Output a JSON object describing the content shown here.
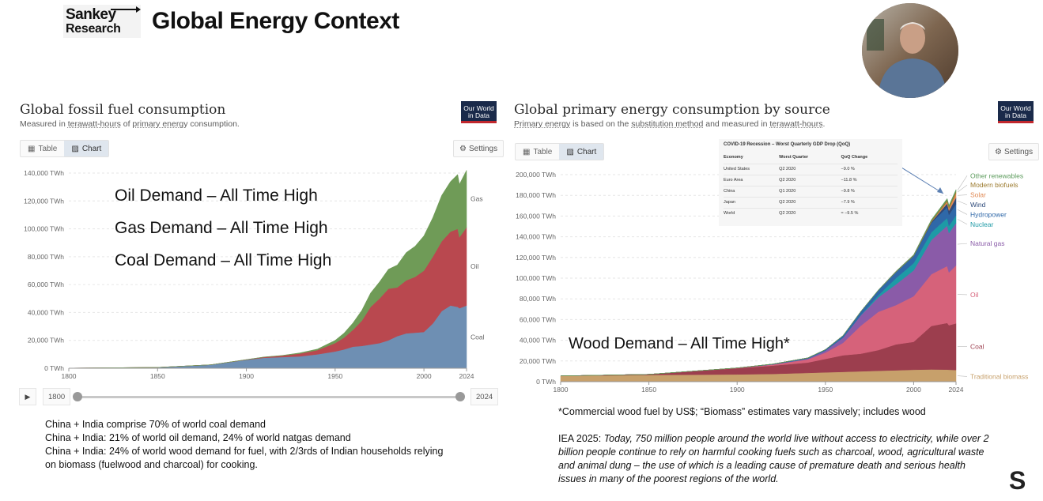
{
  "header": {
    "logo_line1": "Sankey",
    "logo_line2": "Research",
    "title": "Global Energy Context"
  },
  "owid_logo": "Our World in Data",
  "left_panel": {
    "title": "Global fossil fuel consumption",
    "subtitle_pre": "Measured in ",
    "subtitle_link1": "terawatt-hours",
    "subtitle_mid": " of ",
    "subtitle_link2": "primary energy",
    "subtitle_post": " consumption.",
    "tab_table": "Table",
    "tab_chart": "Chart",
    "settings": "Settings",
    "timeline": {
      "start": "1800",
      "end": "2024",
      "play": "▶"
    },
    "overlays": [
      "Oil Demand – All Time High",
      "Gas Demand – All Time High",
      "Coal Demand – All Time High"
    ]
  },
  "right_panel": {
    "title": "Global primary energy consumption by source",
    "subtitle_link1": "Primary energy",
    "subtitle_mid": " is based on the ",
    "subtitle_link2": "substitution method",
    "subtitle_mid2": " and measured in ",
    "subtitle_link3": "terawatt-hours",
    "subtitle_post": ".",
    "tab_table": "Table",
    "tab_chart": "Chart",
    "settings": "Settings",
    "overlay": "Wood Demand – All Time High*",
    "covid_table": {
      "title": "COVID-19 Recession – Worst Quarterly GDP Drop (QoQ)",
      "headers": [
        "Economy",
        "Worst Quarter",
        "QoQ Change"
      ],
      "rows": [
        [
          "United States",
          "Q2 2020",
          "−9.0 %"
        ],
        [
          "Euro Area",
          "Q2 2020",
          "−11.8 %"
        ],
        [
          "China",
          "Q1 2020",
          "−9.8 %"
        ],
        [
          "Japan",
          "Q2 2020",
          "−7.9 %"
        ],
        [
          "World",
          "Q2 2020",
          "≈ −9.5 %"
        ]
      ]
    }
  },
  "notes": {
    "left": [
      "China + India comprise 70% of world coal demand",
      "China + India: 21% of world oil demand, 24% of world natgas demand",
      "China + India: 24% of world wood demand for fuel, with 2/3rds of Indian households relying",
      "on biomass (fuelwood and charcoal) for cooking."
    ],
    "footnote": "*Commercial wood fuel by US$; “Biomass” estimates vary massively; includes wood",
    "iea_prefix": "IEA 2025: ",
    "iea_quote": "Today, 750 million people around the world live without access to electricity, while over 2 billion people continue to rely on harmful cooking fuels such as charcoal, wood, agricultural waste and animal dung – the use of which is a leading cause of premature death and serious health issues in many of the poorest regions of the world."
  },
  "brand_mark": "S",
  "chart_data": [
    {
      "type": "area",
      "stacked": true,
      "title": "Global fossil fuel consumption",
      "unit": "TWh",
      "x": [
        1800,
        1850,
        1880,
        1900,
        1910,
        1920,
        1930,
        1940,
        1950,
        1955,
        1960,
        1965,
        1970,
        1975,
        1980,
        1985,
        1990,
        1995,
        2000,
        2005,
        2010,
        2015,
        2019,
        2020,
        2024
      ],
      "xticks": [
        1800,
        1850,
        1900,
        1950,
        2000,
        2024
      ],
      "ylim": [
        0,
        140000
      ],
      "yticks": [
        0,
        20000,
        40000,
        60000,
        80000,
        100000,
        120000,
        140000
      ],
      "tick_labels_y": [
        "0 TWh",
        "20,000 TWh",
        "40,000 TWh",
        "60,000 TWh",
        "80,000 TWh",
        "100,000 TWh",
        "120,000 TWh",
        "140,000 TWh"
      ],
      "colors": {
        "Coal": "#6e8fb3",
        "Oil": "#b9484f",
        "Gas": "#6f9b57"
      },
      "series": [
        {
          "name": "Coal",
          "values": [
            100,
            600,
            2500,
            6000,
            7500,
            8000,
            8500,
            10000,
            12000,
            13500,
            15500,
            16000,
            17000,
            18000,
            20000,
            23000,
            25000,
            25500,
            26000,
            32000,
            41000,
            45000,
            44000,
            43000,
            45000
          ]
        },
        {
          "name": "Oil",
          "values": [
            0,
            0,
            20,
            200,
            500,
            1000,
            2000,
            3000,
            6000,
            8500,
            12000,
            18000,
            27000,
            32000,
            37000,
            35000,
            38000,
            40000,
            44000,
            48000,
            50000,
            53000,
            56000,
            51000,
            56000
          ]
        },
        {
          "name": "Gas",
          "values": [
            0,
            0,
            0,
            50,
            100,
            200,
            500,
            800,
            2000,
            3200,
            5000,
            7500,
            10000,
            12000,
            14000,
            16000,
            20000,
            22000,
            25000,
            28000,
            33000,
            36000,
            39000,
            38000,
            41000
          ]
        }
      ]
    },
    {
      "type": "area",
      "stacked": true,
      "title": "Global primary energy consumption by source",
      "unit": "TWh",
      "x": [
        1800,
        1850,
        1900,
        1920,
        1940,
        1950,
        1960,
        1970,
        1980,
        1990,
        2000,
        2010,
        2019,
        2020,
        2024
      ],
      "xticks": [
        1800,
        1850,
        1900,
        1950,
        2000,
        2024
      ],
      "ylim": [
        0,
        200000
      ],
      "yticks": [
        0,
        20000,
        40000,
        60000,
        80000,
        100000,
        120000,
        140000,
        160000,
        180000,
        200000
      ],
      "tick_labels_y": [
        "0 TWh",
        "20,000 TWh",
        "40,000 TWh",
        "60,000 TWh",
        "80,000 TWh",
        "100,000 TWh",
        "120,000 TWh",
        "140,000 TWh",
        "160,000 TWh",
        "180,000 TWh",
        "200,000 TWh"
      ],
      "colors": {
        "Traditional biomass": "#c7a06b",
        "Coal": "#9c3e4e",
        "Oil": "#d6627a",
        "Natural gas": "#8a5ba8",
        "Nuclear": "#1d9aa6",
        "Hydropower": "#2f68a8",
        "Wind": "#2e4a7a",
        "Solar": "#e08a55",
        "Modern biofuels": "#9c7b2f",
        "Other renewables": "#5c9b5c"
      },
      "series": [
        {
          "name": "Traditional biomass",
          "values": [
            5500,
            6500,
            7000,
            7500,
            8500,
            9000,
            9500,
            10000,
            10500,
            11000,
            11500,
            11800,
            11700,
            11500,
            11300
          ]
        },
        {
          "name": "Coal",
          "values": [
            100,
            600,
            6000,
            8000,
            10000,
            13000,
            16000,
            17000,
            20000,
            25000,
            27000,
            42000,
            45000,
            43000,
            45000
          ]
        },
        {
          "name": "Oil",
          "values": [
            0,
            0,
            200,
            1000,
            3000,
            6000,
            12000,
            27000,
            37000,
            38000,
            44000,
            50000,
            55000,
            51000,
            56000
          ]
        },
        {
          "name": "Natural gas",
          "values": [
            0,
            0,
            50,
            200,
            800,
            2000,
            5000,
            10000,
            14000,
            20000,
            25000,
            33000,
            39000,
            38000,
            41000
          ]
        },
        {
          "name": "Nuclear",
          "values": [
            0,
            0,
            0,
            0,
            0,
            0,
            0,
            200,
            2000,
            6000,
            7000,
            7500,
            7400,
            7000,
            7400
          ]
        },
        {
          "name": "Hydropower",
          "values": [
            0,
            0,
            0,
            300,
            700,
            1000,
            2000,
            3500,
            4800,
            6000,
            7000,
            9000,
            10500,
            10700,
            11000
          ]
        },
        {
          "name": "Wind",
          "values": [
            0,
            0,
            0,
            0,
            0,
            0,
            0,
            0,
            0,
            0,
            100,
            900,
            3500,
            4000,
            6000
          ]
        },
        {
          "name": "Solar",
          "values": [
            0,
            0,
            0,
            0,
            0,
            0,
            0,
            0,
            0,
            0,
            0,
            100,
            1800,
            2200,
            4500
          ]
        },
        {
          "name": "Modern biofuels",
          "values": [
            0,
            0,
            0,
            0,
            0,
            0,
            0,
            0,
            100,
            300,
            400,
            1200,
            1700,
            1600,
            1900
          ]
        },
        {
          "name": "Other renewables",
          "values": [
            0,
            0,
            0,
            0,
            0,
            0,
            0,
            100,
            200,
            400,
            600,
            900,
            1300,
            1300,
            1500
          ]
        }
      ]
    }
  ]
}
